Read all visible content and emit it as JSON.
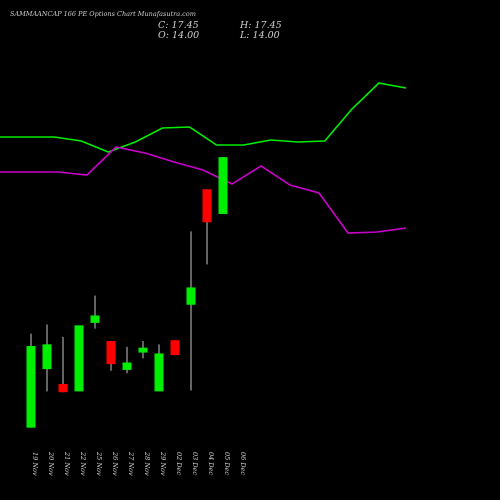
{
  "header": {
    "title": "SAMMAANCAP 166 PE Options Chart Munafasutra.com",
    "close_text": "C: 17.45",
    "open_text": "O: 14.00",
    "high_text": "H: 17.45",
    "low_text": "L: 14.00"
  },
  "chart_data": {
    "type": "candlestick",
    "title": "SAMMAANCAP 166 PE Options Chart Munafasutra.com",
    "categories": [
      "19 Nov",
      "20 Nov",
      "21 Nov",
      "22 Nov",
      "25 Nov",
      "26 Nov",
      "27 Nov",
      "28 Nov",
      "29 Nov",
      "02 Dec",
      "03 Dec",
      "04 Dec",
      "05 Dec",
      "06 Dec"
    ],
    "ohlc": [
      {
        "date": "19 Nov",
        "open": 1.05,
        "high": 6.75,
        "low": 1.05,
        "close": 6.0,
        "bull": true
      },
      {
        "date": "20 Nov",
        "open": 4.6,
        "high": 7.3,
        "low": 3.25,
        "close": 6.1,
        "bull": true
      },
      {
        "date": "21 Nov",
        "open": 3.7,
        "high": 6.55,
        "low": 3.2,
        "close": 3.2,
        "bull": false
      },
      {
        "date": "22 Nov",
        "open": 3.25,
        "high": 7.25,
        "low": 3.25,
        "close": 7.25,
        "bull": true
      },
      {
        "date": "25 Nov",
        "open": 7.4,
        "high": 9.05,
        "low": 7.05,
        "close": 7.85,
        "bull": true
      },
      {
        "date": "26 Nov",
        "open": 6.3,
        "high": 6.3,
        "low": 4.5,
        "close": 4.9,
        "bull": false
      },
      {
        "date": "27 Nov",
        "open": 4.55,
        "high": 5.95,
        "low": 4.35,
        "close": 5.0,
        "bull": true
      },
      {
        "date": "28 Nov",
        "open": 5.6,
        "high": 6.3,
        "low": 5.25,
        "close": 5.9,
        "bull": true
      },
      {
        "date": "29 Nov",
        "open": 3.25,
        "high": 6.1,
        "low": 3.25,
        "close": 5.55,
        "bull": true
      },
      {
        "date": "02 Dec",
        "open": 6.35,
        "high": 6.35,
        "low": 5.45,
        "close": 5.45,
        "bull": false
      },
      {
        "date": "03 Dec",
        "open": 8.5,
        "high": 12.95,
        "low": 3.3,
        "close": 9.55,
        "bull": true
      },
      {
        "date": "04 Dec",
        "open": 15.5,
        "high": 15.5,
        "low": 10.95,
        "close": 13.5,
        "bull": false
      },
      {
        "date": "05 Dec",
        "open": 14.0,
        "high": 17.45,
        "low": 14.0,
        "close": 17.45,
        "bull": true
      }
    ],
    "overlay_lines": [
      {
        "color": "#00ee00",
        "points_y": [
          137,
          137,
          137,
          141,
          152,
          142,
          128,
          127,
          145,
          145,
          140,
          142,
          141,
          109,
          83,
          88
        ]
      },
      {
        "color": "#cc00cc",
        "points_y": [
          172,
          172,
          172,
          175,
          147,
          153,
          162,
          170,
          184,
          166,
          185,
          193,
          233,
          232,
          228
        ]
      }
    ],
    "grid": false,
    "colors": {
      "bull": "#00ee00",
      "bear": "#ff0000",
      "background": "#000000",
      "text": "#d0d0d0"
    }
  }
}
